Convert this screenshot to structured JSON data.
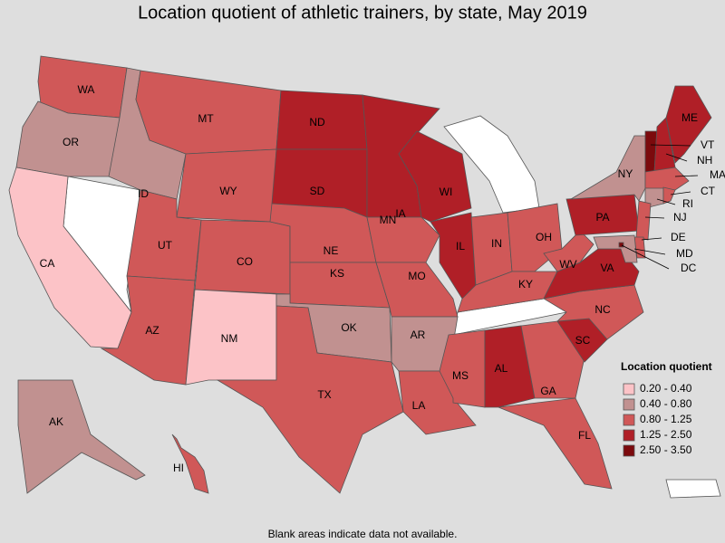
{
  "title": "Location quotient of athletic trainers, by state, May 2019",
  "footnote": "Blank areas indicate data not available.",
  "legend": {
    "title": "Location quotient",
    "items": [
      {
        "label": "0.20 - 0.40",
        "color": "#fcc3c7"
      },
      {
        "label": "0.40 - 0.80",
        "color": "#c19190"
      },
      {
        "label": "0.80 - 1.25",
        "color": "#d05858"
      },
      {
        "label": "1.25 - 2.50",
        "color": "#b01f27"
      },
      {
        "label": "2.50 - 3.50",
        "color": "#7c0a0d"
      }
    ]
  },
  "states": [
    {
      "label": "WA",
      "category": "0.80 - 1.25"
    },
    {
      "label": "OR",
      "category": "0.40 - 0.80"
    },
    {
      "label": "CA",
      "category": "0.20 - 0.40"
    },
    {
      "label": "ID",
      "category": "0.40 - 0.80"
    },
    {
      "label": "MT",
      "category": "0.80 - 1.25"
    },
    {
      "label": "WY",
      "category": "0.80 - 1.25"
    },
    {
      "label": "UT",
      "category": "0.80 - 1.25"
    },
    {
      "label": "AZ",
      "category": "0.80 - 1.25"
    },
    {
      "label": "CO",
      "category": "0.80 - 1.25"
    },
    {
      "label": "NM",
      "category": "0.20 - 0.40"
    },
    {
      "label": "ND",
      "category": "1.25 - 2.50"
    },
    {
      "label": "SD",
      "category": "1.25 - 2.50"
    },
    {
      "label": "NE",
      "category": "0.80 - 1.25"
    },
    {
      "label": "KS",
      "category": "0.80 - 1.25"
    },
    {
      "label": "OK",
      "category": "0.40 - 0.80"
    },
    {
      "label": "TX",
      "category": "0.80 - 1.25"
    },
    {
      "label": "MN",
      "category": "1.25 - 2.50"
    },
    {
      "label": "IA",
      "category": "0.80 - 1.25"
    },
    {
      "label": "MO",
      "category": "0.80 - 1.25"
    },
    {
      "label": "AR",
      "category": "0.40 - 0.80"
    },
    {
      "label": "LA",
      "category": "0.80 - 1.25"
    },
    {
      "label": "WI",
      "category": "1.25 - 2.50"
    },
    {
      "label": "IL",
      "category": "1.25 - 2.50"
    },
    {
      "label": "IN",
      "category": "0.80 - 1.25"
    },
    {
      "label": "OH",
      "category": "0.80 - 1.25"
    },
    {
      "label": "KY",
      "category": "0.80 - 1.25"
    },
    {
      "label": "MS",
      "category": "0.80 - 1.25"
    },
    {
      "label": "AL",
      "category": "1.25 - 2.50"
    },
    {
      "label": "GA",
      "category": "0.80 - 1.25"
    },
    {
      "label": "FL",
      "category": "0.80 - 1.25"
    },
    {
      "label": "SC",
      "category": "1.25 - 2.50"
    },
    {
      "label": "NC",
      "category": "0.80 - 1.25"
    },
    {
      "label": "VA",
      "category": "1.25 - 2.50"
    },
    {
      "label": "WV",
      "category": "0.80 - 1.25"
    },
    {
      "label": "PA",
      "category": "1.25 - 2.50"
    },
    {
      "label": "NY",
      "category": "0.40 - 0.80"
    },
    {
      "label": "VT",
      "category": "2.50 - 3.50"
    },
    {
      "label": "NH",
      "category": "1.25 - 2.50"
    },
    {
      "label": "ME",
      "category": "1.25 - 2.50"
    },
    {
      "label": "MA",
      "category": "0.80 - 1.25"
    },
    {
      "label": "CT",
      "category": "0.40 - 0.80"
    },
    {
      "label": "RI",
      "category": "0.80 - 1.25"
    },
    {
      "label": "NJ",
      "category": "0.80 - 1.25"
    },
    {
      "label": "DE",
      "category": "0.80 - 1.25"
    },
    {
      "label": "MD",
      "category": "0.40 - 0.80"
    },
    {
      "label": "DC",
      "category": "2.50 - 3.50"
    },
    {
      "label": "AK",
      "category": "0.40 - 0.80"
    },
    {
      "label": "HI",
      "category": "0.80 - 1.25"
    }
  ]
}
